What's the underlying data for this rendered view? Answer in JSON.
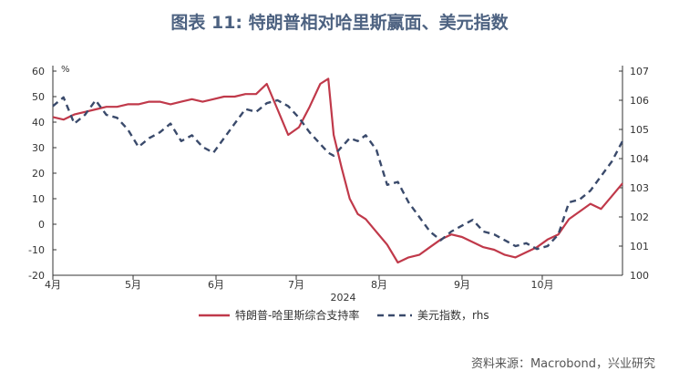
{
  "title": "图表 11: 特朗普相对哈里斯赢面、美元指数",
  "source": "资料来源：Macrobond，兴业研究",
  "chart_data": {
    "type": "line",
    "title": "图表 11: 特朗普相对哈里斯赢面、美元指数",
    "xlabel": "2024",
    "x_ticks": [
      "4月",
      "5月",
      "6月",
      "7月",
      "8月",
      "9月",
      "10月"
    ],
    "left_axis": {
      "unit": "%",
      "ylim": [
        -20,
        60
      ],
      "ticks": [
        -20,
        -10,
        0,
        10,
        20,
        30,
        40,
        50,
        60
      ]
    },
    "right_axis": {
      "ylim": [
        100,
        107
      ],
      "ticks": [
        100,
        101,
        102,
        103,
        104,
        105,
        106,
        107
      ]
    },
    "x_range": [
      "2024-04-01",
      "2024-10-31"
    ],
    "legend": {
      "position": "bottom"
    },
    "grid": false,
    "colors": {
      "series1": "#c0394a",
      "series2": "#3a4a6b",
      "title": "#4d6281"
    },
    "series": [
      {
        "name": "特朗普-哈里斯综合支持率",
        "axis": "left",
        "style": "solid",
        "x": [
          "2024-04-01",
          "2024-04-05",
          "2024-04-09",
          "2024-04-13",
          "2024-04-17",
          "2024-04-21",
          "2024-04-25",
          "2024-04-29",
          "2024-05-03",
          "2024-05-07",
          "2024-05-11",
          "2024-05-15",
          "2024-05-19",
          "2024-05-23",
          "2024-05-27",
          "2024-05-31",
          "2024-06-04",
          "2024-06-08",
          "2024-06-12",
          "2024-06-16",
          "2024-06-20",
          "2024-06-24",
          "2024-06-28",
          "2024-07-02",
          "2024-07-06",
          "2024-07-10",
          "2024-07-13",
          "2024-07-15",
          "2024-07-18",
          "2024-07-21",
          "2024-07-24",
          "2024-07-27",
          "2024-07-31",
          "2024-08-04",
          "2024-08-08",
          "2024-08-12",
          "2024-08-16",
          "2024-08-20",
          "2024-08-24",
          "2024-08-28",
          "2024-09-01",
          "2024-09-05",
          "2024-09-09",
          "2024-09-13",
          "2024-09-17",
          "2024-09-21",
          "2024-09-25",
          "2024-09-29",
          "2024-10-03",
          "2024-10-07",
          "2024-10-11",
          "2024-10-15",
          "2024-10-19",
          "2024-10-23",
          "2024-10-27",
          "2024-10-31"
        ],
        "values": [
          42,
          41,
          43,
          44,
          45,
          46,
          46,
          47,
          47,
          48,
          48,
          47,
          48,
          49,
          48,
          49,
          50,
          50,
          51,
          51,
          55,
          45,
          35,
          38,
          46,
          55,
          57,
          35,
          22,
          10,
          4,
          2,
          -3,
          -8,
          -15,
          -13,
          -12,
          -9,
          -6,
          -4,
          -5,
          -7,
          -9,
          -10,
          -12,
          -13,
          -11,
          -9,
          -6,
          -4,
          2,
          5,
          8,
          6,
          11,
          16
        ]
      },
      {
        "name": "美元指数，rhs",
        "axis": "right",
        "style": "dashed",
        "x": [
          "2024-04-01",
          "2024-04-05",
          "2024-04-09",
          "2024-04-13",
          "2024-04-17",
          "2024-04-21",
          "2024-04-25",
          "2024-04-29",
          "2024-05-03",
          "2024-05-07",
          "2024-05-11",
          "2024-05-15",
          "2024-05-19",
          "2024-05-23",
          "2024-05-27",
          "2024-05-31",
          "2024-06-04",
          "2024-06-08",
          "2024-06-12",
          "2024-06-16",
          "2024-06-20",
          "2024-06-24",
          "2024-06-28",
          "2024-07-02",
          "2024-07-06",
          "2024-07-10",
          "2024-07-13",
          "2024-07-15",
          "2024-07-18",
          "2024-07-21",
          "2024-07-24",
          "2024-07-27",
          "2024-07-31",
          "2024-08-04",
          "2024-08-08",
          "2024-08-12",
          "2024-08-16",
          "2024-08-20",
          "2024-08-24",
          "2024-08-28",
          "2024-09-01",
          "2024-09-05",
          "2024-09-09",
          "2024-09-13",
          "2024-09-17",
          "2024-09-21",
          "2024-09-25",
          "2024-09-29",
          "2024-10-03",
          "2024-10-07",
          "2024-10-11",
          "2024-10-15",
          "2024-10-19",
          "2024-10-23",
          "2024-10-27",
          "2024-10-31"
        ],
        "values": [
          105.8,
          106.1,
          105.2,
          105.5,
          106.0,
          105.5,
          105.4,
          105.0,
          104.4,
          104.7,
          104.9,
          105.2,
          104.6,
          104.8,
          104.4,
          104.2,
          104.7,
          105.2,
          105.7,
          105.6,
          105.9,
          106.0,
          105.8,
          105.4,
          104.9,
          104.5,
          104.2,
          104.1,
          104.4,
          104.7,
          104.6,
          104.8,
          104.3,
          103.1,
          103.2,
          102.5,
          102.0,
          101.5,
          101.2,
          101.5,
          101.7,
          101.9,
          101.5,
          101.4,
          101.2,
          101.0,
          101.1,
          100.9,
          101.0,
          101.4,
          102.5,
          102.6,
          102.9,
          103.4,
          103.9,
          104.6
        ]
      }
    ]
  }
}
